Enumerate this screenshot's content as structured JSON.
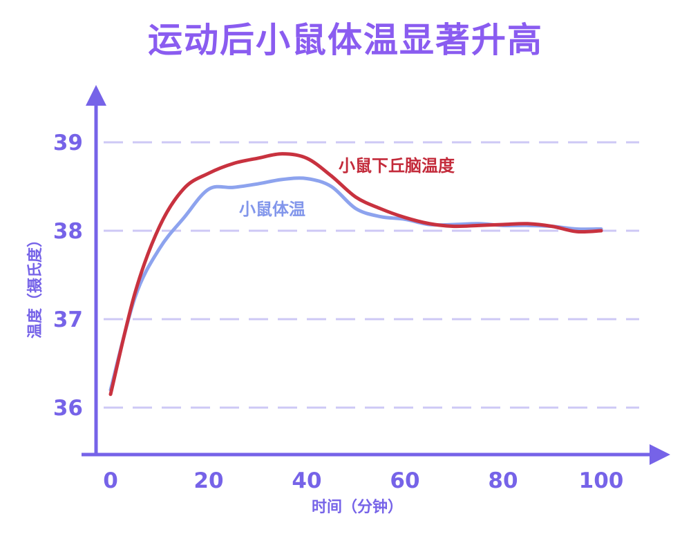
{
  "chart_data": {
    "type": "line",
    "title": "运动后小鼠体温显著升高",
    "xlabel": "时间（分钟）",
    "ylabel": "温度（摄氏度）",
    "xlim": [
      -2,
      112
    ],
    "ylim": [
      35.5,
      39.5
    ],
    "xticks": [
      0,
      20,
      40,
      60,
      80,
      100
    ],
    "yticks": [
      36,
      37,
      38,
      39
    ],
    "grid": "horizontal dashed at y ticks",
    "series": [
      {
        "name": "小鼠下丘脑温度",
        "color": "#c8323f",
        "x": [
          0,
          5,
          10,
          15,
          20,
          25,
          30,
          35,
          40,
          45,
          50,
          55,
          60,
          65,
          70,
          75,
          80,
          85,
          90,
          95,
          100
        ],
        "y": [
          36.15,
          37.3,
          38.05,
          38.48,
          38.65,
          38.76,
          38.82,
          38.87,
          38.82,
          38.62,
          38.38,
          38.25,
          38.15,
          38.08,
          38.05,
          38.06,
          38.07,
          38.08,
          38.05,
          37.99,
          38.0
        ]
      },
      {
        "name": "小鼠体温",
        "color": "#8da3ee",
        "x": [
          0,
          5,
          10,
          15,
          20,
          25,
          30,
          35,
          40,
          45,
          50,
          55,
          60,
          65,
          70,
          75,
          80,
          85,
          90,
          95,
          100
        ],
        "y": [
          36.2,
          37.25,
          37.8,
          38.15,
          38.47,
          38.49,
          38.53,
          38.58,
          38.59,
          38.5,
          38.25,
          38.16,
          38.13,
          38.07,
          38.07,
          38.08,
          38.06,
          38.06,
          38.05,
          38.02,
          38.02
        ]
      }
    ]
  }
}
